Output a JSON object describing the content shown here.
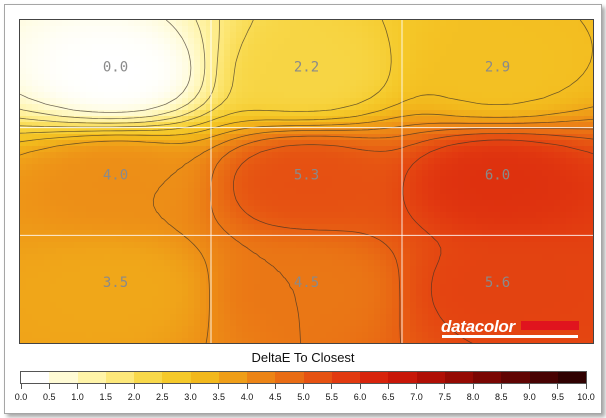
{
  "chart_data": {
    "type": "heatmap",
    "title": "DeltaE To Closest",
    "grid": {
      "rows": 3,
      "cols": 3,
      "values": [
        [
          0.0,
          2.2,
          2.9
        ],
        [
          4.0,
          5.3,
          6.0
        ],
        [
          3.5,
          4.5,
          5.6
        ]
      ],
      "labels": [
        [
          "0.0",
          "2.2",
          "2.9"
        ],
        [
          "4.0",
          "5.3",
          "6.0"
        ],
        [
          "3.5",
          "4.5",
          "5.6"
        ]
      ]
    },
    "scale": {
      "min": 0.0,
      "max": 10.0,
      "step": 0.5,
      "tick_labels": [
        "0.0",
        "0.5",
        "1.0",
        "1.5",
        "2.0",
        "2.5",
        "3.0",
        "3.5",
        "4.0",
        "4.5",
        "5.0",
        "5.5",
        "6.0",
        "6.5",
        "7.0",
        "7.5",
        "8.0",
        "8.5",
        "9.0",
        "9.5",
        "10.0"
      ],
      "colors": [
        "#ffffff",
        "#fffbd5",
        "#fff4a8",
        "#fde87a",
        "#f8d84a",
        "#f5c92a",
        "#f2b81c",
        "#ef9e18",
        "#ec8416",
        "#e96c14",
        "#e65212",
        "#e23a10",
        "#d8240c",
        "#c81708",
        "#b00f05",
        "#950a03",
        "#7a0602",
        "#600402",
        "#480202",
        "#300101"
      ]
    },
    "brand": {
      "logo_text": "datacolor",
      "logo_red": "#e0141e"
    }
  }
}
